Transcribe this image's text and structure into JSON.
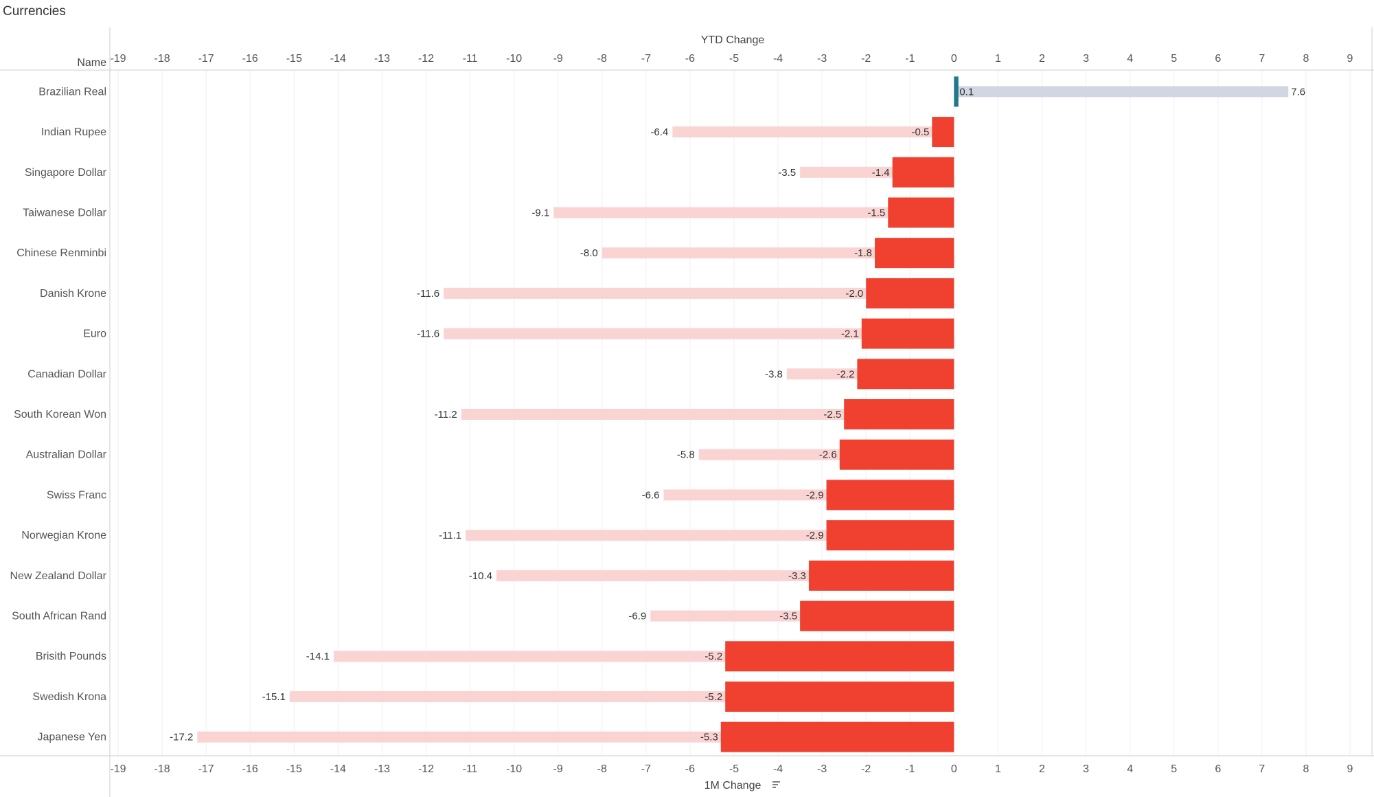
{
  "page_title": "Currencies",
  "chart_data": {
    "type": "bar",
    "orientation": "horizontal",
    "title": "Currencies",
    "row_header": "Name",
    "top_axis_label": "YTD Change",
    "bottom_axis_label": "1M Change",
    "sort_icon": "sort-descending-icon",
    "xlim": [
      -19,
      9
    ],
    "x_ticks": [
      -19,
      -18,
      -17,
      -16,
      -15,
      -14,
      -13,
      -12,
      -11,
      -10,
      -9,
      -8,
      -7,
      -6,
      -5,
      -4,
      -3,
      -2,
      -1,
      0,
      1,
      2,
      3,
      4,
      5,
      6,
      7,
      8,
      9
    ],
    "x_tick_labels": [
      "-19",
      "-18",
      "-17",
      "-16",
      "-15",
      "-14",
      "-13",
      "-12",
      "-11",
      "-10",
      "-9",
      "-8",
      "-7",
      "-6",
      "-5",
      "-4",
      "-3",
      "-2",
      "-1",
      "0",
      "1",
      "2",
      "3",
      "4",
      "5",
      "6",
      "7",
      "8",
      "9"
    ],
    "grid": true,
    "categories": [
      "Brazilian Real",
      "Indian Rupee",
      "Singapore Dollar",
      "Taiwanese Dollar",
      "Chinese Renminbi",
      "Danish Krone",
      "Euro",
      "Canadian Dollar",
      "South Korean Won",
      "Australian Dollar",
      "Swiss Franc",
      "Norwegian Krone",
      "New Zealand Dollar",
      "South African Rand",
      "Brisith Pounds",
      "Swedish Krona",
      "Japanese Yen"
    ],
    "series": [
      {
        "name": "1M Change",
        "values": [
          0.1,
          -0.5,
          -1.4,
          -1.5,
          -1.8,
          -2.0,
          -2.1,
          -2.2,
          -2.5,
          -2.6,
          -2.9,
          -2.9,
          -3.3,
          -3.5,
          -5.2,
          -5.2,
          -5.3
        ],
        "labels": [
          "0.1",
          "-0.5",
          "-1.4",
          "-1.5",
          "-1.8",
          "-2.0",
          "-2.1",
          "-2.2",
          "-2.5",
          "-2.6",
          "-2.9",
          "-2.9",
          "-3.3",
          "-3.5",
          "-5.2",
          "-5.2",
          "-5.3"
        ]
      },
      {
        "name": "YTD Change",
        "values": [
          7.6,
          -6.4,
          -3.5,
          -9.1,
          -8.0,
          -11.6,
          -11.6,
          -3.8,
          -11.2,
          -5.8,
          -6.6,
          -11.1,
          -10.4,
          -6.9,
          -14.1,
          -15.1,
          -17.2
        ],
        "labels": [
          "7.6",
          "-6.4",
          "-3.5",
          "-9.1",
          "-8.0",
          "-11.6",
          "-11.6",
          "-3.8",
          "-11.2",
          "-5.8",
          "-6.6",
          "-11.1",
          "-10.4",
          "-6.9",
          "-14.1",
          "-15.1",
          "-17.2"
        ]
      }
    ],
    "colors": {
      "negative_1m": "#f04130",
      "positive_1m": "#1f7a8c",
      "negative_ytd": "#fad4d2",
      "positive_ytd": "#d2d6e2",
      "grid": "#eeeeee",
      "axis": "#cccccc"
    }
  }
}
